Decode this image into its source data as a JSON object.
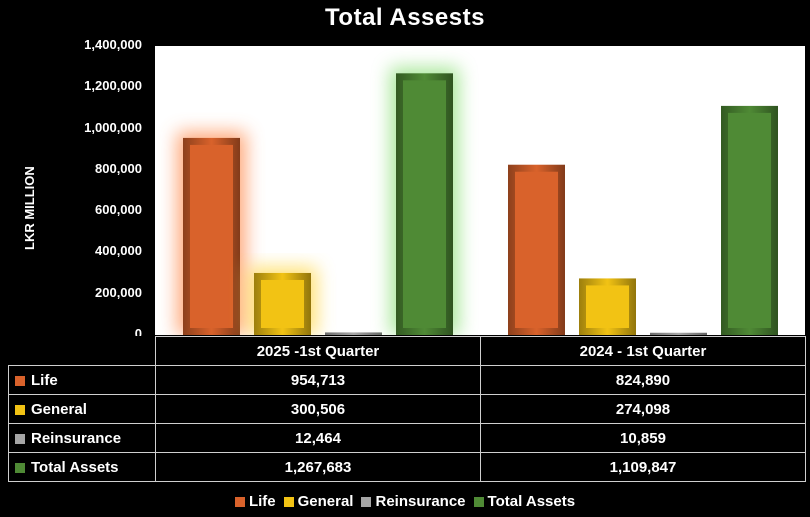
{
  "chart_data": {
    "type": "bar",
    "title": "Total Assests",
    "ylabel": "LKR MILLION",
    "ylim": [
      0,
      1400000
    ],
    "yticks": [
      "0",
      "200,000",
      "400,000",
      "600,000",
      "800,000",
      "1,000,000",
      "1,200,000",
      "1,400,000"
    ],
    "categories": [
      "2025 -1st Quarter",
      "2024 - 1st  Quarter"
    ],
    "series": [
      {
        "name": "Life",
        "values": [
          954713,
          824890
        ],
        "labels": [
          "954,713",
          "824,890"
        ],
        "color": "#d9622b"
      },
      {
        "name": "General",
        "values": [
          300506,
          274098
        ],
        "labels": [
          "300,506",
          "274,098"
        ],
        "color": "#f2c314"
      },
      {
        "name": "Reinsurance",
        "values": [
          12464,
          10859
        ],
        "labels": [
          "12,464",
          "10,859"
        ],
        "color": "#a6a6a6"
      },
      {
        "name": "Total Assets",
        "values": [
          1267683,
          1109847
        ],
        "labels": [
          "1,267,683",
          "1,109,847"
        ],
        "color": "#4f8a35"
      }
    ],
    "glow_colors": [
      "#ff8c50",
      "#ffd84a",
      "",
      "#8ee07a"
    ],
    "legend_position": "bottom",
    "grid": false
  }
}
